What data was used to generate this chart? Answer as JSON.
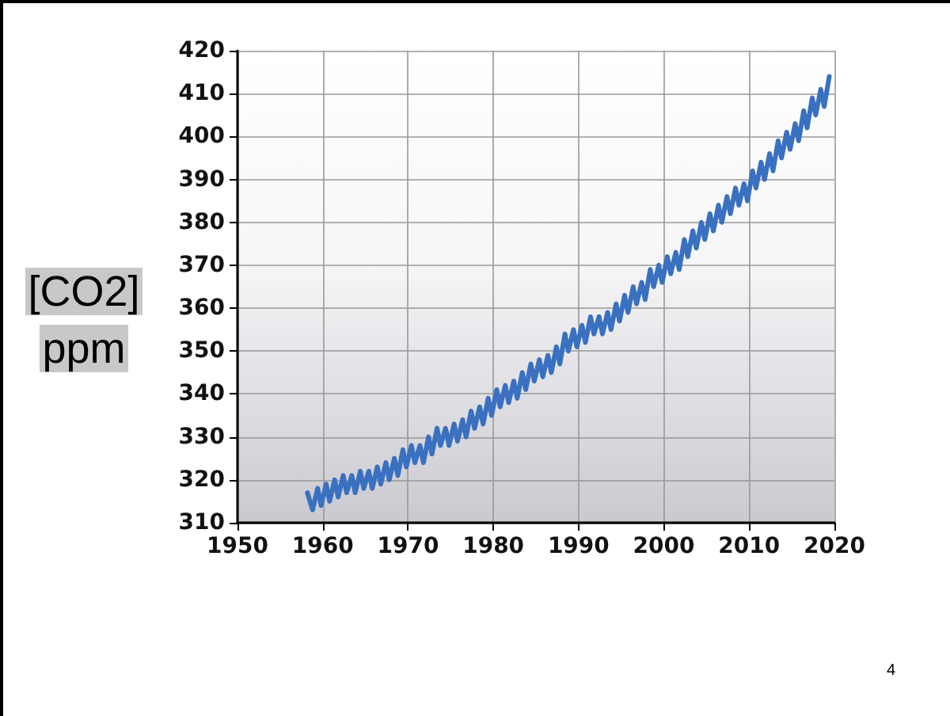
{
  "chart_data": {
    "type": "line",
    "ylabel": "[CO2] ppm",
    "x": [
      1958.2,
      1958.8,
      1959.4,
      1959.8,
      1960.4,
      1960.8,
      1961.4,
      1961.8,
      1962.4,
      1962.8,
      1963.4,
      1963.8,
      1964.4,
      1964.8,
      1965.4,
      1965.8,
      1966.4,
      1966.8,
      1967.4,
      1967.8,
      1968.4,
      1968.8,
      1969.4,
      1969.8,
      1970.4,
      1970.8,
      1971.4,
      1971.8,
      1972.4,
      1972.8,
      1973.4,
      1973.8,
      1974.4,
      1974.8,
      1975.4,
      1975.8,
      1976.4,
      1976.8,
      1977.4,
      1977.8,
      1978.4,
      1978.8,
      1979.4,
      1979.8,
      1980.4,
      1980.8,
      1981.4,
      1981.8,
      1982.4,
      1982.8,
      1983.4,
      1983.8,
      1984.4,
      1984.8,
      1985.4,
      1985.8,
      1986.4,
      1986.8,
      1987.4,
      1987.8,
      1988.4,
      1988.8,
      1989.4,
      1989.8,
      1990.4,
      1990.8,
      1991.4,
      1991.8,
      1992.4,
      1992.8,
      1993.4,
      1993.8,
      1994.4,
      1994.8,
      1995.4,
      1995.8,
      1996.4,
      1996.8,
      1997.4,
      1997.8,
      1998.4,
      1998.8,
      1999.4,
      1999.8,
      2000.4,
      2000.8,
      2001.4,
      2001.8,
      2002.4,
      2002.8,
      2003.4,
      2003.8,
      2004.4,
      2004.8,
      2005.4,
      2005.8,
      2006.4,
      2006.8,
      2007.4,
      2007.8,
      2008.4,
      2008.8,
      2009.4,
      2009.8,
      2010.4,
      2010.8,
      2011.4,
      2011.8,
      2012.4,
      2012.8,
      2013.4,
      2013.8,
      2014.4,
      2014.8,
      2015.4,
      2015.8,
      2016.4,
      2016.8,
      2017.4,
      2017.8,
      2018.4,
      2018.8,
      2019.4
    ],
    "series": [
      {
        "color": "#3a70c0",
        "values": [
          317,
          313,
          318,
          314,
          319,
          315,
          320,
          316,
          321,
          317,
          321,
          317,
          322,
          318,
          322,
          318,
          323,
          319,
          324,
          320,
          325,
          321,
          327,
          323,
          328,
          324,
          328,
          324,
          330,
          326,
          332,
          328,
          332,
          328,
          333,
          329,
          334,
          330,
          336,
          332,
          337,
          333,
          339,
          335,
          341,
          337,
          342,
          338,
          343,
          339,
          345,
          341,
          347,
          343,
          348,
          344,
          349,
          345,
          351,
          347,
          354,
          350,
          355,
          351,
          356,
          352,
          358,
          354,
          358,
          354,
          359,
          355,
          361,
          357,
          363,
          359,
          365,
          361,
          366,
          362,
          369,
          365,
          370,
          366,
          372,
          368,
          373,
          369,
          376,
          372,
          378,
          374,
          380,
          376,
          382,
          378,
          384,
          380,
          386,
          382,
          388,
          384,
          389,
          385,
          392,
          388,
          394,
          390,
          396,
          392,
          399,
          395,
          401,
          397,
          403,
          399,
          406,
          402,
          409,
          405,
          411,
          407,
          414
        ]
      }
    ],
    "xlim": [
      1950,
      2020
    ],
    "xticks": [
      1950,
      1960,
      1970,
      1980,
      1990,
      2000,
      2010,
      2020
    ],
    "ylim": [
      310,
      420
    ],
    "yticks": [
      310,
      320,
      330,
      340,
      350,
      360,
      370,
      380,
      390,
      400,
      410,
      420
    ],
    "grid": true,
    "marker": "none",
    "line_style": "solid",
    "annotations": [
      "4"
    ]
  }
}
